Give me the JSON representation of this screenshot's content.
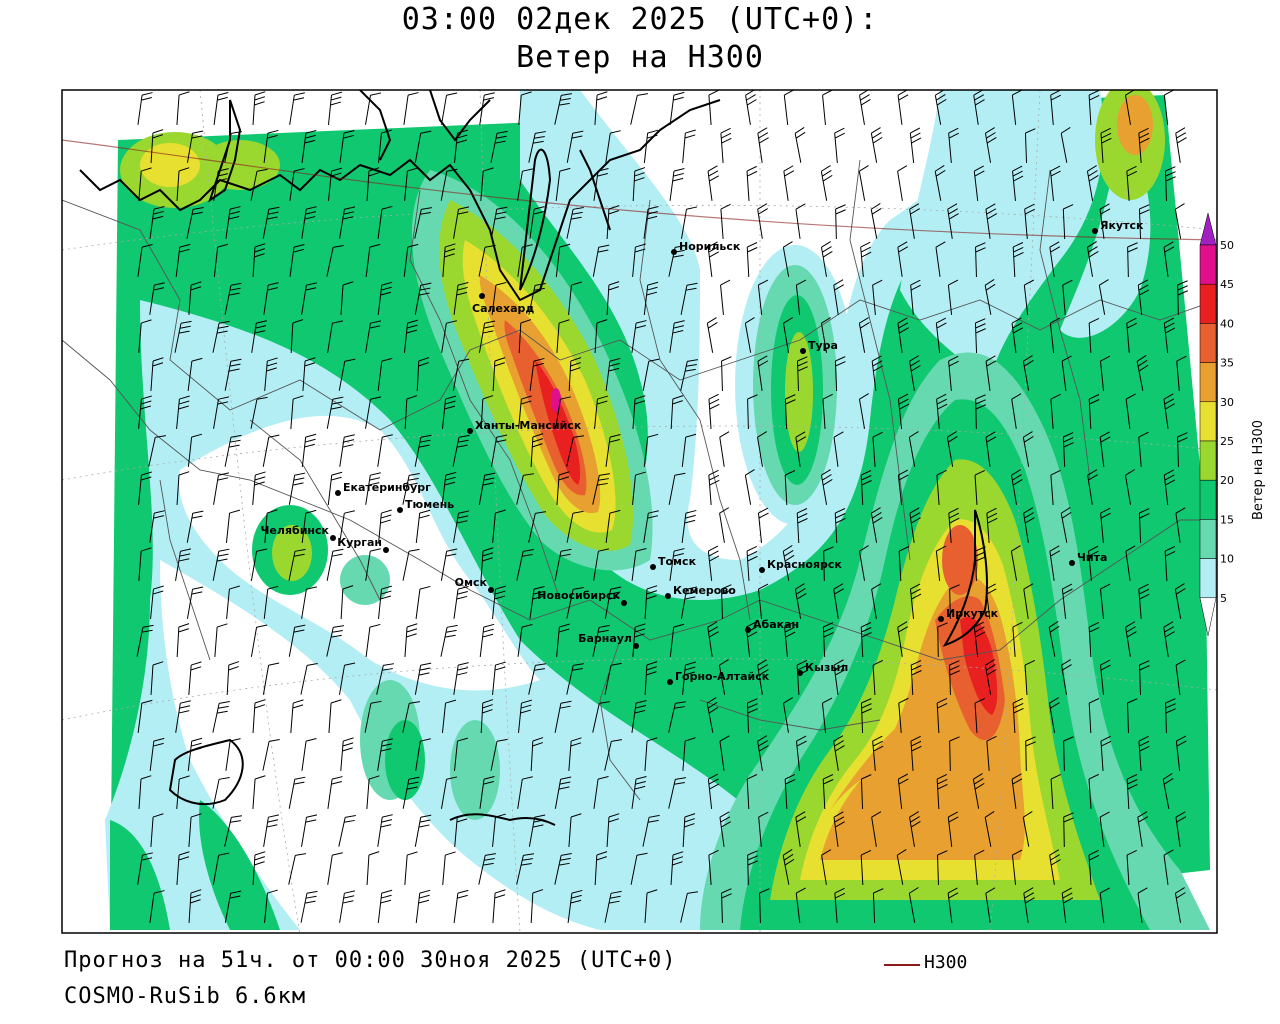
{
  "title": {
    "line1": "03:00 02дек 2025 (UTC+0):",
    "line2": "Ветер на H300"
  },
  "footer": {
    "forecast": "Прогноз на 51ч. от 00:00 30ноя 2025 (UTC+0)",
    "model": "COSMO-RuSib 6.6км"
  },
  "legend": {
    "contour_label": "H300",
    "contour_color": "#8b1a1a"
  },
  "colorbar": {
    "title": "Ветер на H300",
    "ticks": [
      "5",
      "10",
      "15",
      "20",
      "25",
      "30",
      "35",
      "40",
      "45",
      "50"
    ],
    "colors": [
      "#ffffff",
      "#b3eef5",
      "#66d9b0",
      "#10c870",
      "#9ad830",
      "#e8e030",
      "#e8a030",
      "#e86030",
      "#e82020",
      "#e0108c",
      "#a020c0"
    ]
  },
  "cities": [
    {
      "name": "Салехард"
    },
    {
      "name": "Норильск"
    },
    {
      "name": "Якутск"
    },
    {
      "name": "Тура"
    },
    {
      "name": "Ханты-Мансийск"
    },
    {
      "name": "Екатеринбург"
    },
    {
      "name": "Тюмень"
    },
    {
      "name": "Челябинск"
    },
    {
      "name": "Курган"
    },
    {
      "name": "Омск"
    },
    {
      "name": "Новосибирск"
    },
    {
      "name": "Томск"
    },
    {
      "name": "Кемерово"
    },
    {
      "name": "Красноярск"
    },
    {
      "name": "Абакан"
    },
    {
      "name": "Барнаул"
    },
    {
      "name": "Горно-Алтайск"
    },
    {
      "name": "Кызыл"
    },
    {
      "name": "Иркутск"
    },
    {
      "name": "Чита"
    }
  ]
}
